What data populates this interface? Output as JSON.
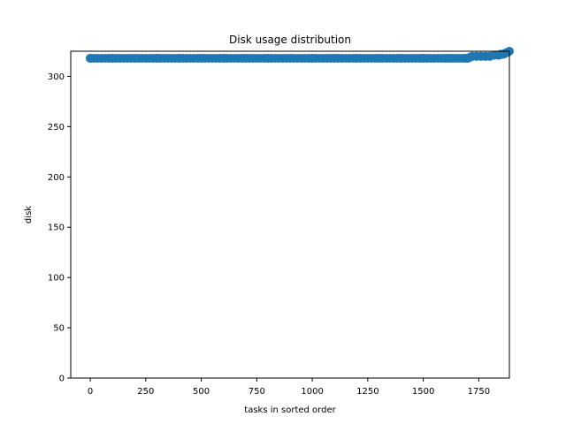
{
  "chart_data": {
    "type": "scatter",
    "title": "Disk usage distribution",
    "xlabel": "tasks in sorted order",
    "ylabel": "disk",
    "xlim": [
      -88,
      1888
    ],
    "ylim": [
      0,
      325
    ],
    "xticks": [
      0,
      250,
      500,
      750,
      1000,
      1250,
      1500,
      1750
    ],
    "yticks": [
      0,
      50,
      100,
      150,
      200,
      250,
      300
    ],
    "grid": false,
    "legend": "none",
    "marker_color": "#1f77b4",
    "series": [
      {
        "x": [
          0,
          100,
          200,
          300,
          400,
          500,
          600,
          700,
          800,
          900,
          1000,
          1100,
          1200,
          1300,
          1400,
          1500,
          1600,
          1690,
          1700,
          1710,
          1720,
          1740,
          1760,
          1780,
          1800,
          1820,
          1840,
          1850,
          1860,
          1870,
          1880,
          1888
        ],
        "y": [
          318,
          318,
          318,
          318,
          318,
          318,
          318,
          318,
          318,
          318,
          318,
          318,
          318,
          318,
          318,
          318,
          318,
          318,
          318,
          319,
          320,
          320,
          320,
          320,
          320,
          321,
          321,
          322,
          322,
          323,
          324,
          325
        ]
      }
    ]
  }
}
